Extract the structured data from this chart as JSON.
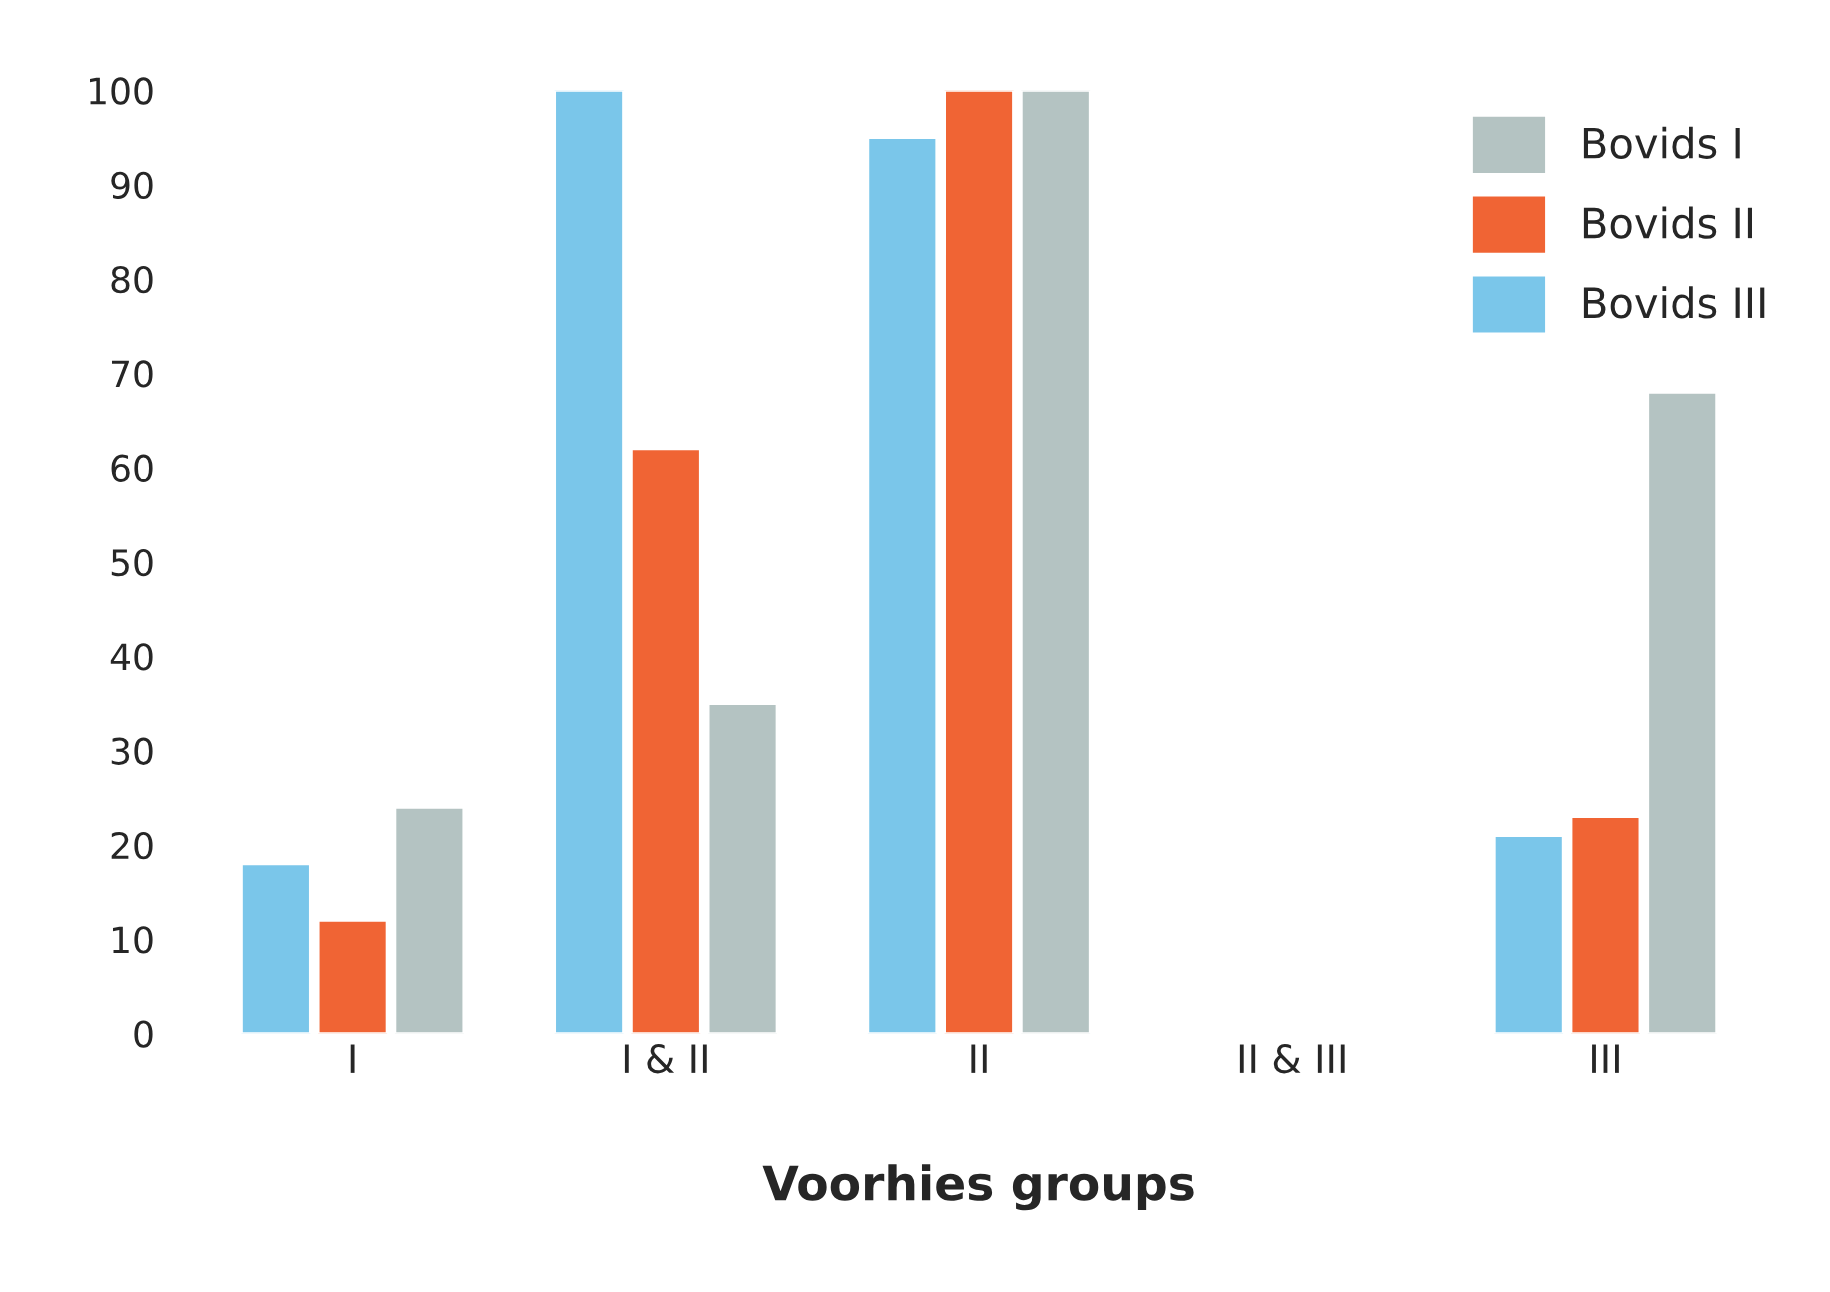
{
  "chart_data": {
    "type": "bar",
    "xlabel": "Voorhies groups",
    "categories": [
      "I",
      "I & II",
      "II",
      "II & III",
      "III"
    ],
    "series": [
      {
        "name": "Bovids III",
        "color": "#7ac6ea",
        "values": [
          18,
          100,
          95,
          null,
          21
        ]
      },
      {
        "name": "Bovids II",
        "color": "#f06434",
        "values": [
          12,
          62,
          100,
          null,
          23
        ]
      },
      {
        "name": "Bovids I",
        "color": "#b4c3c2",
        "values": [
          24,
          35,
          100,
          null,
          68
        ]
      }
    ],
    "ylim": [
      0,
      100
    ],
    "yticks": [
      0,
      10,
      20,
      30,
      40,
      50,
      60,
      70,
      80,
      90,
      100
    ],
    "grid": false,
    "legend": "top right"
  }
}
